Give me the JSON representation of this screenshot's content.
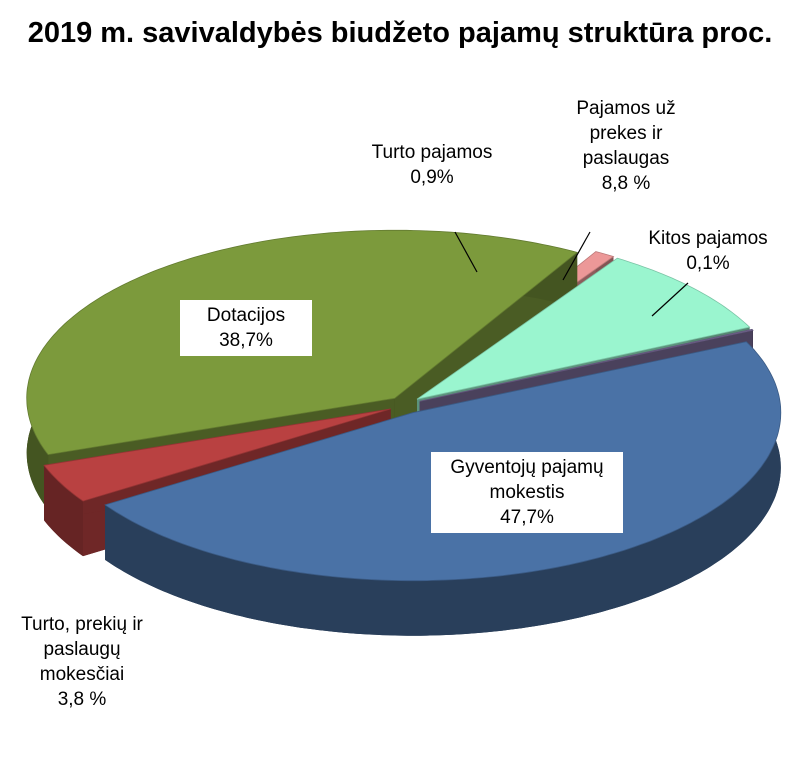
{
  "chart_data": {
    "type": "pie",
    "title": "2019 m. savivaldybės biudžeto pajamų struktūra proc.",
    "categories": [
      "Gyventojų pajamų mokestis",
      "Turto, prekių ir paslaugų mokesčiai",
      "Dotacijos",
      "Turto pajamos",
      "Pajamos už prekes ir paslaugas",
      "Kitos pajamos"
    ],
    "values": [
      47.7,
      3.8,
      38.7,
      0.9,
      8.8,
      0.1
    ],
    "value_labels": [
      "47,7%",
      "3,8 %",
      "38,7%",
      "0,9%",
      "8,8 %",
      "0,1%"
    ],
    "colors": [
      "#4a72a6",
      "#b94141",
      "#7c9a3c",
      "#ec9898",
      "#9af5cf",
      "#7b6c9a"
    ]
  }
}
